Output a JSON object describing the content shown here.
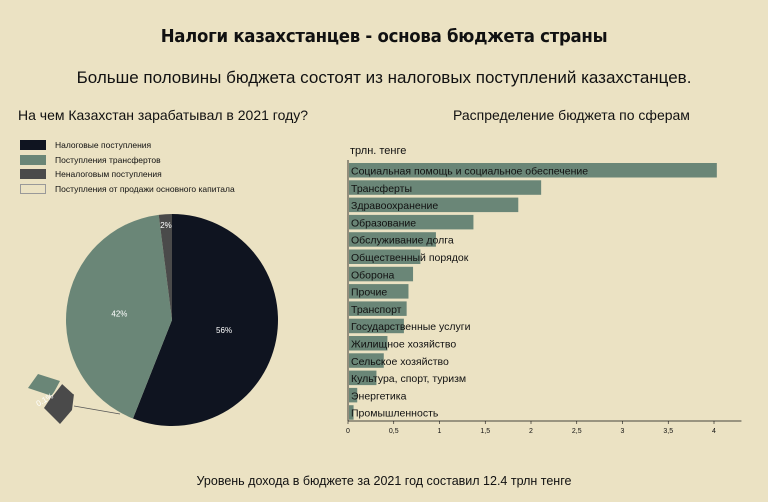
{
  "header": {
    "title": "Налоги казахстанцев - основа бюджета страны",
    "subtitle": "Больше половины бюджета состоят из налоговых поступлений казахстанцев.",
    "footer": "Уровень дохода в бюджете за 2021 год составил 12.4 трлн тенге"
  },
  "colors": {
    "background": "#ebe2c3",
    "tax": "#0f1420",
    "transfer": "#6a8677",
    "nontax": "#4a4a4a",
    "capital": "#ebe2c3",
    "bar": "#6a8677"
  },
  "chart_data": [
    {
      "type": "pie",
      "title": "На чем Казахстан зарабатывал в 2021 году?",
      "legend_position": "top-left",
      "slices": [
        {
          "name": "Налоговые поступления",
          "value": 56,
          "label": "56%",
          "color": "#0f1420"
        },
        {
          "name": "Поступления трансфертов",
          "value": 42,
          "label": "42%",
          "color": "#6a8677"
        },
        {
          "name": "Неналоговым поступления",
          "value": 2,
          "label": "2%",
          "color": "#4a4a4a"
        },
        {
          "name": "Поступления от продажи основного капитала",
          "value": 0,
          "label": "",
          "color": "#ebe2c3"
        }
      ],
      "breakout": {
        "slices": [
          {
            "label": "",
            "color": "#6a8677"
          },
          {
            "label": "0.1%",
            "color": "#4a4a4a"
          }
        ]
      }
    },
    {
      "type": "bar",
      "orientation": "horizontal",
      "title": "Распределение бюджета по сферам",
      "unit_label": "трлн. тенге",
      "categories": [
        "Социальная помощь и социальное обеспечение",
        "Трансферты",
        "Здравоохранение",
        "Образование",
        "Обслуживание долга",
        "Общественный порядок",
        "Оборона",
        "Прочие",
        "Транспорт",
        "Государственные услуги",
        "Жилищное  хозяйство",
        "Сельское хозяйство",
        "Культура, спорт, туризм",
        "Энергетика",
        "Промышленность"
      ],
      "values": [
        4.02,
        2.1,
        1.85,
        1.36,
        0.95,
        0.78,
        0.7,
        0.65,
        0.63,
        0.6,
        0.42,
        0.38,
        0.3,
        0.09,
        0.05
      ],
      "xlim": [
        0,
        4.3
      ],
      "xticks": [
        "0",
        "0,5",
        "1",
        "1,5",
        "2",
        "2,5",
        "3",
        "3,5",
        "4"
      ],
      "xtick_values": [
        0,
        0.5,
        1,
        1.5,
        2,
        2.5,
        3,
        3.5,
        4
      ],
      "grid": false
    }
  ]
}
